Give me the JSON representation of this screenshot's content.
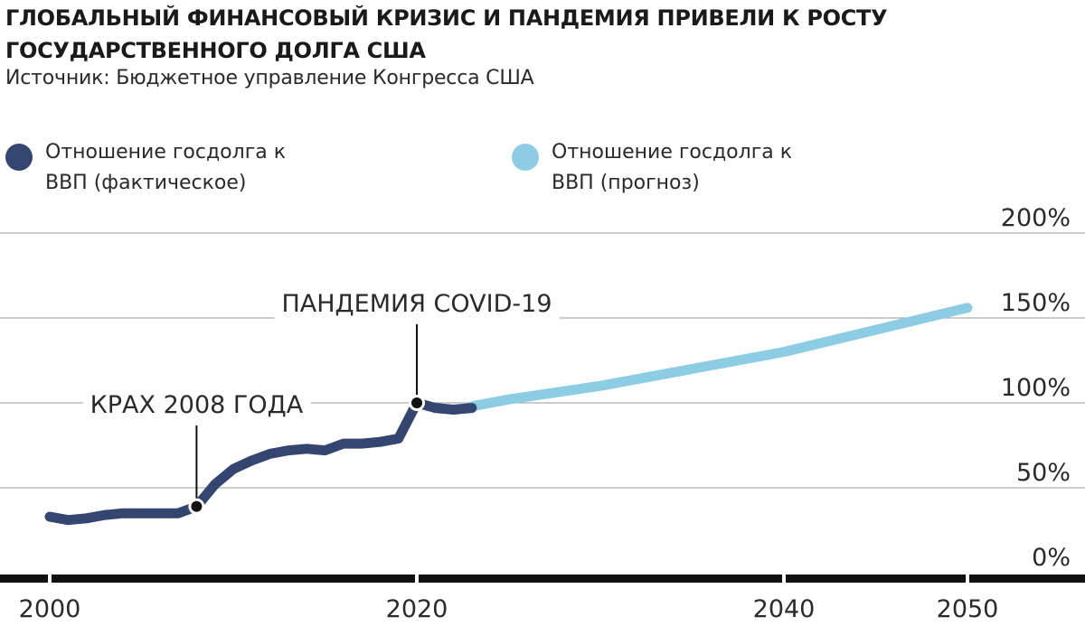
{
  "header": {
    "title": "ГЛОБАЛЬНЫЙ ФИНАНСОВЫЙ КРИЗИС И ПАНДЕМИЯ ПРИВЕЛИ К РОСТУ ГОСУДАРСТВЕННОГО ДОЛГА США",
    "source": "Источник: Бюджетное управление Конгресса США"
  },
  "legend": [
    {
      "label": "Отношение госдолга к ВВП (фактическое)",
      "color": "#34466f"
    },
    {
      "label": "Отношение госдолга к ВВП (прогноз)",
      "color": "#8ccde3"
    }
  ],
  "chart_data": {
    "type": "line",
    "title": "ГЛОБАЛЬНЫЙ ФИНАНСОВЫЙ КРИЗИС И ПАНДЕМИЯ ПРИВЕЛИ К РОСТУ ГОСУДАРСТВЕННОГО ДОЛГА США",
    "xlabel": "",
    "ylabel": "",
    "xlim": [
      1998,
      2061
    ],
    "ylim": [
      0,
      200
    ],
    "x_ticks": [
      2000,
      2020,
      2040,
      2050
    ],
    "x_tick_labels": [
      "2000",
      "2020",
      "2040",
      "2050"
    ],
    "y_ticks": [
      0,
      50,
      100,
      150,
      200
    ],
    "y_tick_labels": [
      "0%",
      "50%",
      "100%",
      "150%",
      "200%"
    ],
    "grid": true,
    "legend_position": "top",
    "series": [
      {
        "name": "Отношение госдолга к ВВП (фактическое)",
        "color": "#34466f",
        "x": [
          2000,
          2001,
          2002,
          2003,
          2004,
          2005,
          2006,
          2007,
          2008,
          2009,
          2010,
          2011,
          2012,
          2013,
          2014,
          2015,
          2016,
          2017,
          2018,
          2019,
          2020,
          2021,
          2022,
          2023
        ],
        "y": [
          33,
          31,
          32,
          34,
          35,
          35,
          35,
          35,
          39,
          52,
          61,
          66,
          70,
          72,
          73,
          72,
          76,
          76,
          77,
          79,
          100,
          97,
          96,
          97
        ]
      },
      {
        "name": "Отношение госдолга к ВВП (прогноз)",
        "color": "#8ccde3",
        "x": [
          2023,
          2025,
          2030,
          2035,
          2040,
          2045,
          2050
        ],
        "y": [
          98,
          102,
          110,
          120,
          130,
          143,
          156
        ]
      }
    ],
    "annotations": [
      {
        "text": "КРАХ 2008 ГОДА",
        "x": 2008,
        "y": 39
      },
      {
        "text": "ПАНДЕМИЯ COVID-19",
        "x": 2020,
        "y": 100
      }
    ]
  }
}
